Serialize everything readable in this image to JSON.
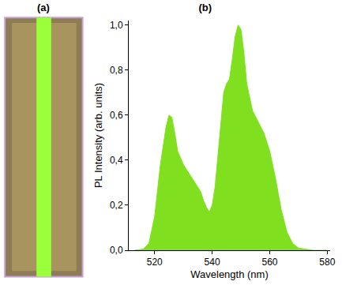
{
  "chart_data": {
    "type": "area",
    "title": "(b)",
    "annotations": [
      "(a)"
    ],
    "x_label": "Wavelength (nm)",
    "y_label": "PL Intensity (arb. units)",
    "color": "#80e020",
    "grid": false,
    "x": [
      513,
      516,
      518,
      520,
      522,
      524,
      525,
      526,
      527,
      528,
      530,
      532,
      534,
      536,
      537,
      538,
      539,
      540,
      541,
      542,
      543,
      544,
      545,
      546,
      547,
      548,
      549,
      550,
      551,
      552,
      554,
      556,
      558,
      560,
      562,
      564,
      566,
      568,
      570,
      575,
      580
    ],
    "values": [
      0,
      0.005,
      0.03,
      0.15,
      0.38,
      0.55,
      0.6,
      0.59,
      0.52,
      0.44,
      0.38,
      0.34,
      0.3,
      0.26,
      0.22,
      0.19,
      0.17,
      0.2,
      0.28,
      0.42,
      0.58,
      0.7,
      0.74,
      0.76,
      0.85,
      0.95,
      1.0,
      0.98,
      0.88,
      0.74,
      0.62,
      0.57,
      0.52,
      0.44,
      0.32,
      0.18,
      0.08,
      0.03,
      0.01,
      0,
      0
    ],
    "xlim": [
      511,
      581
    ],
    "xticks": [
      520,
      540,
      560,
      580
    ],
    "ylim": [
      0,
      1.02
    ],
    "yticks": [
      {
        "value": 0,
        "label": "0,0"
      },
      {
        "value": 0.2,
        "label": "0,2"
      },
      {
        "value": 0.4,
        "label": "0,4"
      },
      {
        "value": 0.6,
        "label": "0,6"
      },
      {
        "value": 0.8,
        "label": "0,8"
      },
      {
        "value": 1.0,
        "label": "1,0"
      }
    ]
  }
}
